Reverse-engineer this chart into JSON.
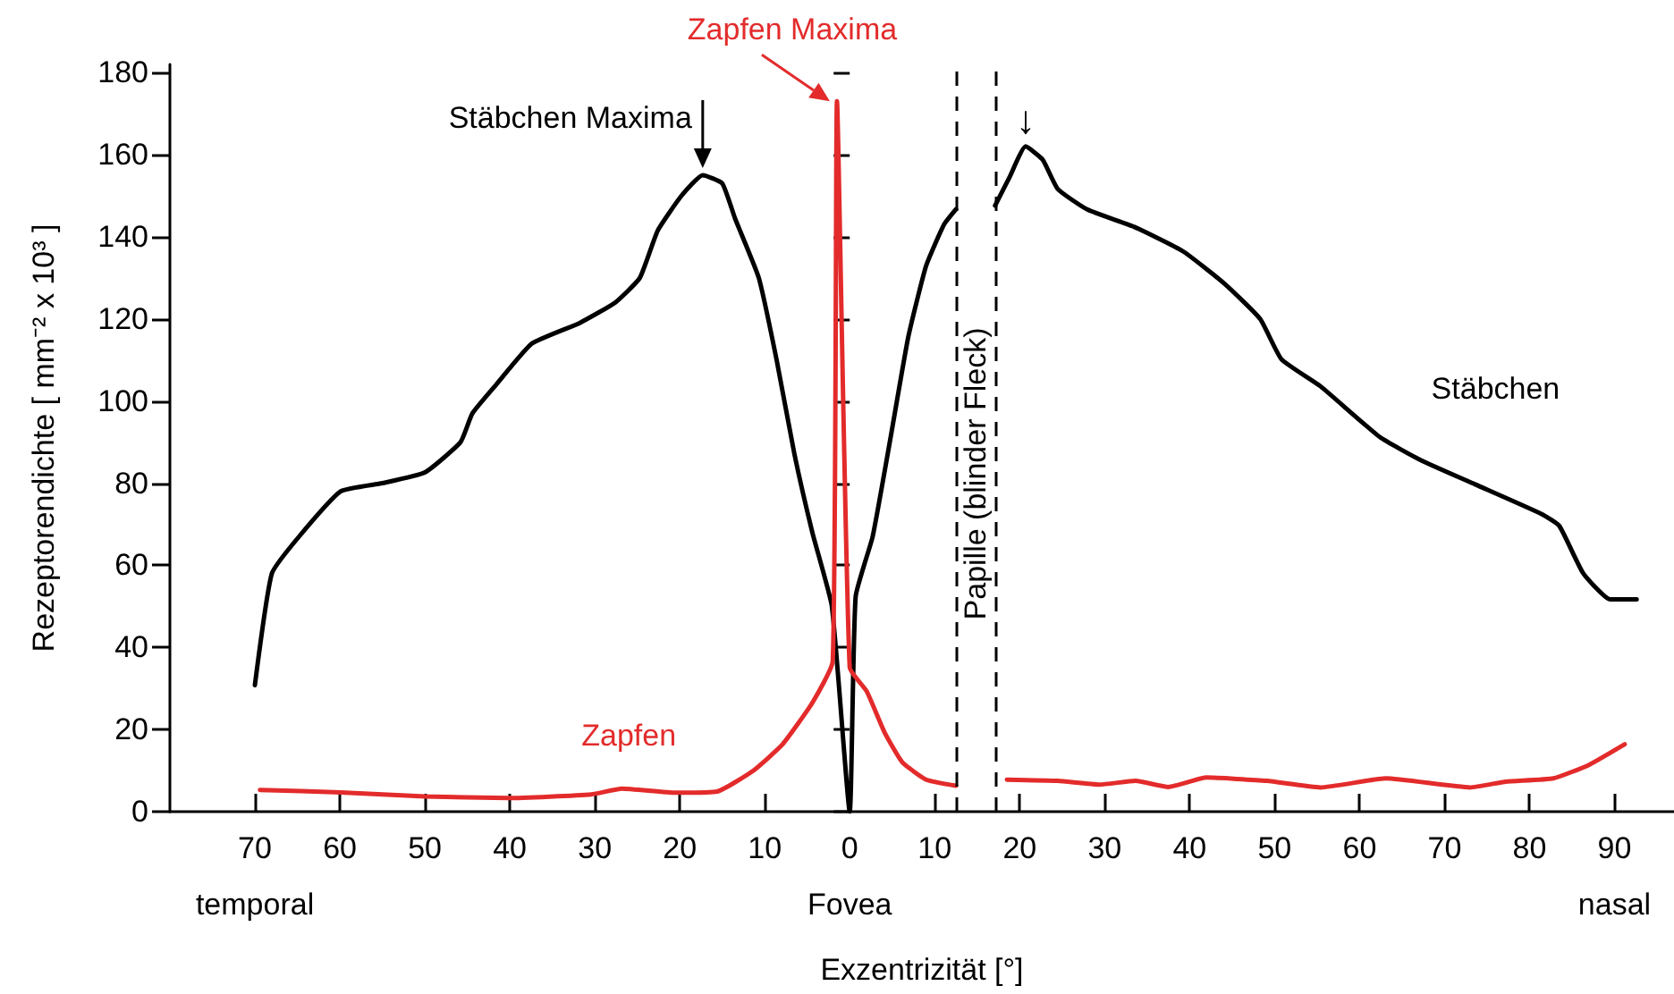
{
  "chart_data": {
    "type": "line",
    "xlabel": "Exzentrizität [°]",
    "ylabel": "Rezeptorendichte [ mm⁻² x 10³ ]",
    "xlim": [
      -80,
      97
    ],
    "ylim": [
      0,
      182
    ],
    "xticks": [
      {
        "value": -70,
        "label": "70"
      },
      {
        "value": -60,
        "label": "60"
      },
      {
        "value": -50,
        "label": "50"
      },
      {
        "value": -40,
        "label": "40"
      },
      {
        "value": -30,
        "label": "30"
      },
      {
        "value": -20,
        "label": "20"
      },
      {
        "value": -10,
        "label": "10"
      },
      0,
      10,
      20,
      30,
      40,
      50,
      60,
      70,
      80,
      90
    ],
    "yticks": [
      0,
      20,
      40,
      60,
      80,
      100,
      120,
      140,
      160,
      180
    ],
    "grid": false,
    "legend": false,
    "marker": "none",
    "line_style": "solid",
    "series": [
      {
        "name": "Stäbchen",
        "color": "#000000",
        "x": [
          -70,
          -68,
          -64.8,
          -59.9,
          -55,
          -50,
          -45.8,
          -44.4,
          -41.6,
          -37.4,
          -31.8,
          -27.6,
          -24.7,
          -22.6,
          -19.8,
          -17.3,
          -15,
          -13.5,
          -10.7,
          -8.6,
          -6.5,
          -4.4,
          -2.1,
          0,
          0.7,
          2.7,
          4.8,
          6.9,
          9,
          11.1,
          12.5,
          15,
          17.1,
          18.8,
          20.7,
          22.7,
          24.5,
          28,
          33.5,
          39.2,
          44.1,
          48.3,
          50.8,
          55.4,
          62.4,
          67.3,
          73.6,
          81.4,
          83.5,
          86.3,
          89.5,
          92.6
        ],
        "values": [
          30.8,
          58,
          67,
          78,
          80,
          82.6,
          90,
          97,
          104,
          114,
          119,
          124,
          130,
          141.5,
          150,
          155,
          153,
          144.5,
          130,
          110,
          87,
          68,
          50,
          0,
          52.4,
          67,
          91,
          115.7,
          133,
          143,
          146.7,
          null,
          147.6,
          154.5,
          162,
          158.8,
          151.6,
          146.6,
          142.4,
          136.5,
          128.6,
          120,
          110.2,
          103.6,
          91.2,
          85.5,
          79.7,
          72.5,
          69.6,
          58.1,
          51.7,
          51.7
        ]
      },
      {
        "name": "Zapfen",
        "color": "#e32b2b",
        "x": [
          -69.4,
          -59.9,
          -50,
          -40.2,
          -30.4,
          -26.8,
          -20.5,
          -15.6,
          -11.4,
          -7.9,
          -4.4,
          -2,
          -1.5,
          0,
          2,
          4.1,
          6.2,
          9,
          12.5,
          15,
          18.5,
          24.5,
          29.4,
          33.6,
          37.5,
          42,
          49.1,
          55.4,
          63.1,
          73,
          77.2,
          82.8,
          87,
          91.2
        ],
        "values": [
          5.3,
          4.7,
          3.7,
          3.3,
          4.2,
          5.6,
          4.6,
          4.9,
          9.9,
          16.4,
          26.5,
          36.6,
          173,
          35.1,
          29.3,
          19.3,
          12,
          7.8,
          6.3,
          null,
          7.8,
          7.5,
          6.6,
          7.5,
          6,
          8.3,
          7.5,
          5.9,
          8.1,
          5.9,
          7.3,
          8.1,
          11.4,
          16.4
        ]
      }
    ],
    "ref_lines": [
      {
        "axis": "x",
        "value": 12.5,
        "label": "Papille (blinder Fleck)",
        "line_style": "dashed"
      },
      {
        "axis": "x",
        "value": 17.1,
        "line_style": "dashed"
      }
    ],
    "annotations": [
      {
        "text": "Stäbchen Maxima",
        "x": -17.3,
        "y": 155
      },
      {
        "text": "↓",
        "x": 20.7,
        "y": 162
      },
      {
        "text": "Zapfen Maxima",
        "x": -1.5,
        "y": 173
      },
      "temporal",
      "Fovea",
      "nasal"
    ]
  }
}
